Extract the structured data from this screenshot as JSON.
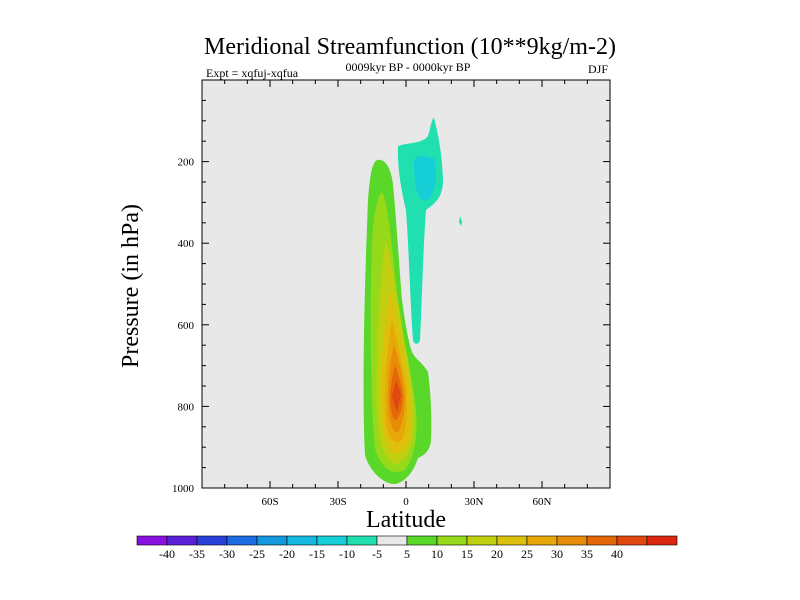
{
  "chart_data": {
    "type": "contour",
    "title": "Meridional Streamfunction (10**9kg/m-2)",
    "subtitle_left": "Expt = xqfuj-xqfua",
    "subtitle_center": "0009kyr BP - 0000kyr BP",
    "subtitle_right": "DJF",
    "xlabel": "Latitude",
    "ylabel": "Pressure (in hPa)",
    "xlim": [
      -90,
      90
    ],
    "ylim": [
      1000,
      0
    ],
    "x_ticks": [
      {
        "value": -60,
        "label": "60S"
      },
      {
        "value": -30,
        "label": "30S"
      },
      {
        "value": 0,
        "label": "0"
      },
      {
        "value": 30,
        "label": "30N"
      },
      {
        "value": 60,
        "label": "60N"
      }
    ],
    "y_ticks": [
      {
        "value": 200,
        "label": "200"
      },
      {
        "value": 400,
        "label": "400"
      },
      {
        "value": 600,
        "label": "600"
      },
      {
        "value": 800,
        "label": "800"
      },
      {
        "value": 1000,
        "label": "1000"
      }
    ],
    "background_color": "#e8e8e8",
    "colorbar": {
      "colors": [
        "#8a10e0",
        "#5a20d8",
        "#2840d8",
        "#1a6ce0",
        "#1498e0",
        "#14b8e0",
        "#16cfd6",
        "#20e0b0",
        "#e8e8e8",
        "#5ad82a",
        "#96d81a",
        "#c0d010",
        "#dcc00c",
        "#e8a808",
        "#e88c08",
        "#e46808",
        "#e04810",
        "#dc2810"
      ],
      "labels": [
        "-40",
        "-35",
        "-30",
        "-25",
        "-20",
        "-15",
        "-10",
        "-5",
        "5",
        "10",
        "15",
        "20",
        "25",
        "30",
        "35",
        "40"
      ]
    },
    "features": [
      {
        "name": "positive-cell-sh",
        "peak_value": 40,
        "peak_lat": -6,
        "peak_pressure": 780,
        "lat_range": [
          -18,
          6
        ],
        "pressure_range": [
          190,
          980
        ]
      },
      {
        "name": "negative-cell-upper",
        "min_value": -10,
        "lat_range": [
          -3,
          17
        ],
        "pressure_range": [
          90,
          640
        ]
      }
    ]
  }
}
